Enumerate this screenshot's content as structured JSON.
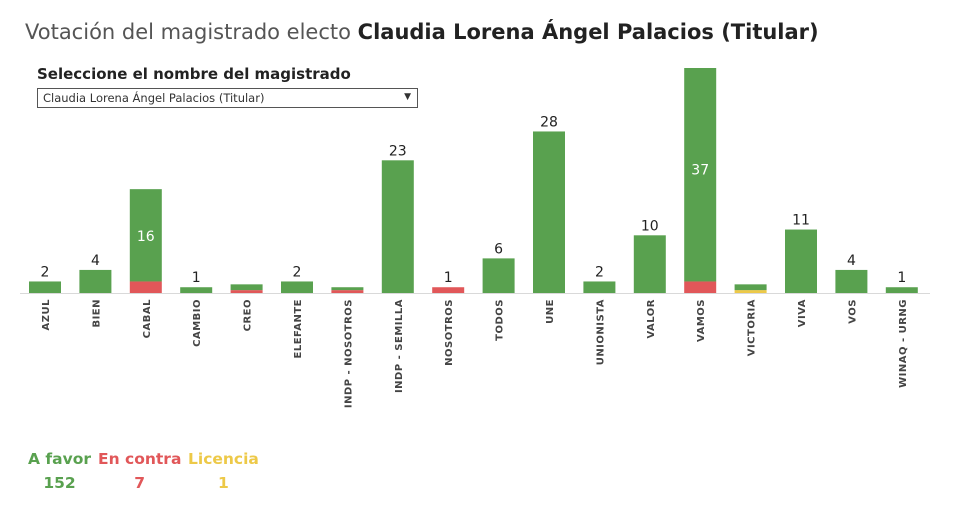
{
  "title": {
    "prefix": "Votación del magistrado electo ",
    "name": "Claudia Lorena Ángel Palacios (Titular)"
  },
  "selector": {
    "label": "Seleccione el nombre del magistrado",
    "value": "Claudia Lorena Ángel Palacios (Titular)",
    "arrow_icon": "triangle-down-icon"
  },
  "colors": {
    "a_favor": "#59a14f",
    "en_contra": "#e15759",
    "licencia": "#edc948"
  },
  "summary": {
    "a_favor_label": "A favor",
    "a_favor_value": "152",
    "en_contra_label": "En contra",
    "en_contra_value": "7",
    "licencia_label": "Licencia",
    "licencia_value": "1"
  },
  "chart_data": {
    "type": "bar",
    "stacked": true,
    "categories": [
      "AZUL",
      "BIEN",
      "CABAL",
      "CAMBIO",
      "CREO",
      "ELEFANTE",
      "INDP - NOSOTROS",
      "INDP - SEMILLA",
      "NOSOTROS",
      "TODOS",
      "UNE",
      "UNIONISTA",
      "VALOR",
      "VAMOS",
      "VICTORIA",
      "VIVA",
      "VOS",
      "WINAQ - URNG"
    ],
    "series": [
      {
        "name": "A favor",
        "values": [
          2,
          4,
          16,
          1,
          1,
          2,
          0.5,
          23,
          0,
          6,
          28,
          2,
          10,
          37,
          1,
          11,
          4,
          1
        ]
      },
      {
        "name": "En contra",
        "values": [
          0,
          0,
          2,
          0,
          0.5,
          0,
          0.5,
          0,
          1,
          0,
          0,
          0,
          0,
          2,
          0,
          0,
          0,
          0
        ]
      },
      {
        "name": "Licencia",
        "values": [
          0,
          0,
          0,
          0,
          0,
          0,
          0,
          0,
          0,
          0,
          0,
          0,
          0,
          0,
          0.5,
          0,
          0,
          0
        ]
      }
    ],
    "data_labels": [
      "2",
      "4",
      "16",
      "1",
      "",
      "2",
      "",
      "23",
      "1",
      "6",
      "28",
      "2",
      "10",
      "37",
      "",
      "11",
      "4",
      "1"
    ],
    "label_inside": [
      false,
      false,
      true,
      false,
      false,
      false,
      false,
      false,
      false,
      false,
      false,
      false,
      false,
      true,
      false,
      false,
      false,
      false
    ],
    "ylim": [
      0,
      39
    ],
    "grid": false,
    "legend": "bottom-left"
  }
}
